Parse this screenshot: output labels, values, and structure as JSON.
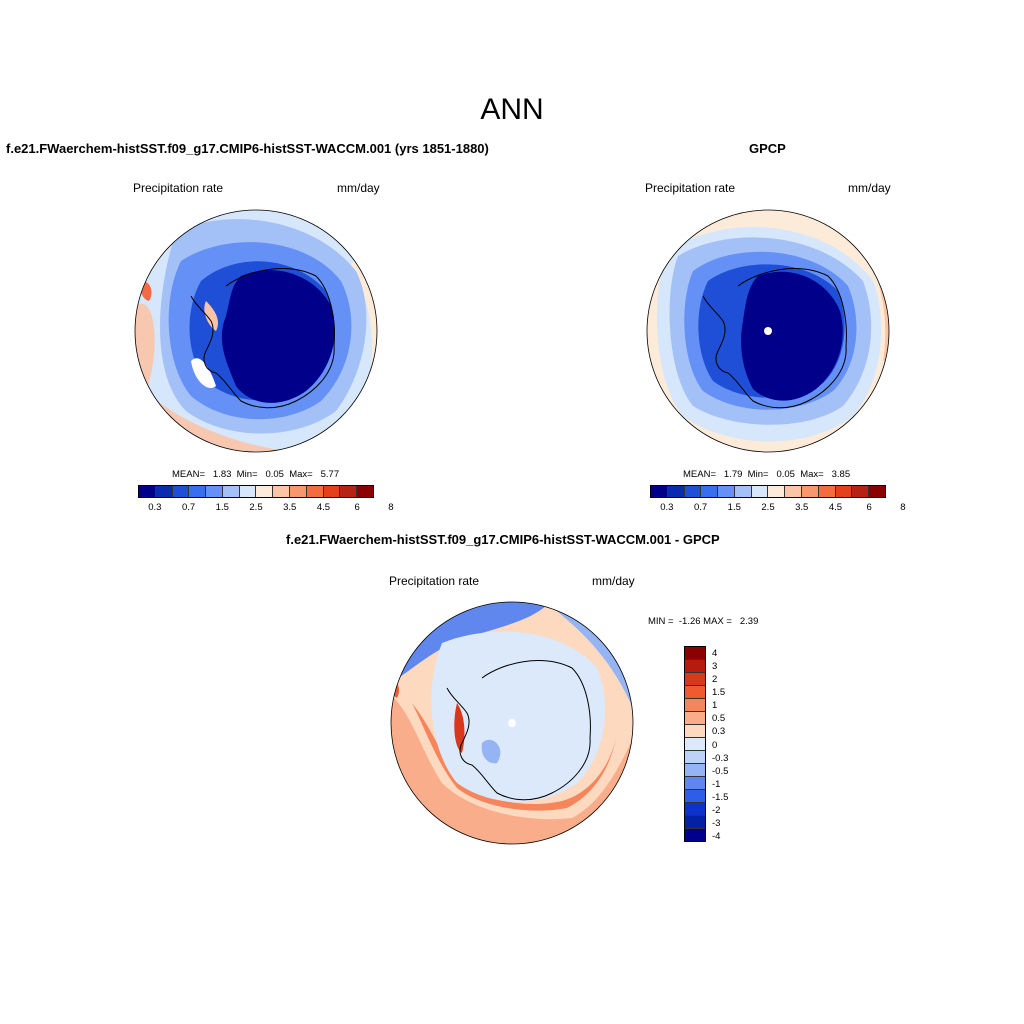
{
  "page": {
    "title": "ANN"
  },
  "panels": {
    "model": {
      "title": "f.e21.FWaerchem-histSST.f09_g17.CMIP6-histSST-WACCM.001 (yrs 1851-1880)",
      "variable": "Precipitation rate",
      "units": "mm/day",
      "stats": "MEAN=   1.83  Min=   0.05  Max=   5.77"
    },
    "obs": {
      "title": "GPCP",
      "variable": "Precipitation rate",
      "units": "mm/day",
      "stats": "MEAN=   1.79  Min=   0.05  Max=   3.85"
    },
    "diff": {
      "title": "f.e21.FWaerchem-histSST.f09_g17.CMIP6-histSST-WACCM.001 - GPCP",
      "variable": "Precipitation rate",
      "units": "mm/day",
      "stats": "MIN =  -1.26 MAX =   2.39"
    }
  },
  "colorbar_fields": {
    "colors": [
      "#00008b",
      "#0a2ab0",
      "#1f4fd6",
      "#3a6ef0",
      "#6590f5",
      "#a3c1f7",
      "#d6e6fb",
      "#fdebd9",
      "#fbc4a6",
      "#f7976f",
      "#f36a43",
      "#e3401e",
      "#b72312",
      "#8b0000"
    ],
    "ticks": [
      "0.3",
      "0.7",
      "1.5",
      "2.5",
      "3.5",
      "4.5",
      "6",
      "8"
    ]
  },
  "colorbar_diff": {
    "colors": [
      "#8b0000",
      "#b51b0e",
      "#d9381c",
      "#f05a2f",
      "#f7855c",
      "#f9ad8a",
      "#fdd9bf",
      "#dce9fb",
      "#bcd2f8",
      "#94b4f4",
      "#5f87ee",
      "#2f5ee6",
      "#0d33c7",
      "#0420a3",
      "#00008b"
    ],
    "ticks": [
      "4",
      "3",
      "2",
      "1.5",
      "1",
      "0.5",
      "0.3",
      "0",
      "-0.3",
      "-0.5",
      "-1",
      "-1.5",
      "-2",
      "-3",
      "-4"
    ]
  },
  "chart_data": [
    {
      "type": "heatmap",
      "title": "f.e21.FWaerchem-histSST.f09_g17.CMIP6-histSST-WACCM.001 (yrs 1851-1880)",
      "variable": "Precipitation rate",
      "units": "mm/day",
      "projection": "south polar stereographic",
      "mean": 1.83,
      "min": 0.05,
      "max": 5.77,
      "levels": [
        0.3,
        0.5,
        0.7,
        1,
        1.5,
        2,
        2.5,
        3,
        3.5,
        4,
        4.5,
        5,
        6,
        7,
        8
      ]
    },
    {
      "type": "heatmap",
      "title": "GPCP",
      "variable": "Precipitation rate",
      "units": "mm/day",
      "projection": "south polar stereographic",
      "mean": 1.79,
      "min": 0.05,
      "max": 3.85,
      "levels": [
        0.3,
        0.5,
        0.7,
        1,
        1.5,
        2,
        2.5,
        3,
        3.5,
        4,
        4.5,
        5,
        6,
        7,
        8
      ]
    },
    {
      "type": "heatmap",
      "title": "f.e21.FWaerchem-histSST.f09_g17.CMIP6-histSST-WACCM.001 - GPCP",
      "variable": "Precipitation rate",
      "units": "mm/day",
      "projection": "south polar stereographic",
      "min": -1.26,
      "max": 2.39,
      "levels": [
        -4,
        -3,
        -2,
        -1.5,
        -1,
        -0.5,
        -0.3,
        0,
        0.3,
        0.5,
        1,
        1.5,
        2,
        3,
        4
      ]
    }
  ]
}
